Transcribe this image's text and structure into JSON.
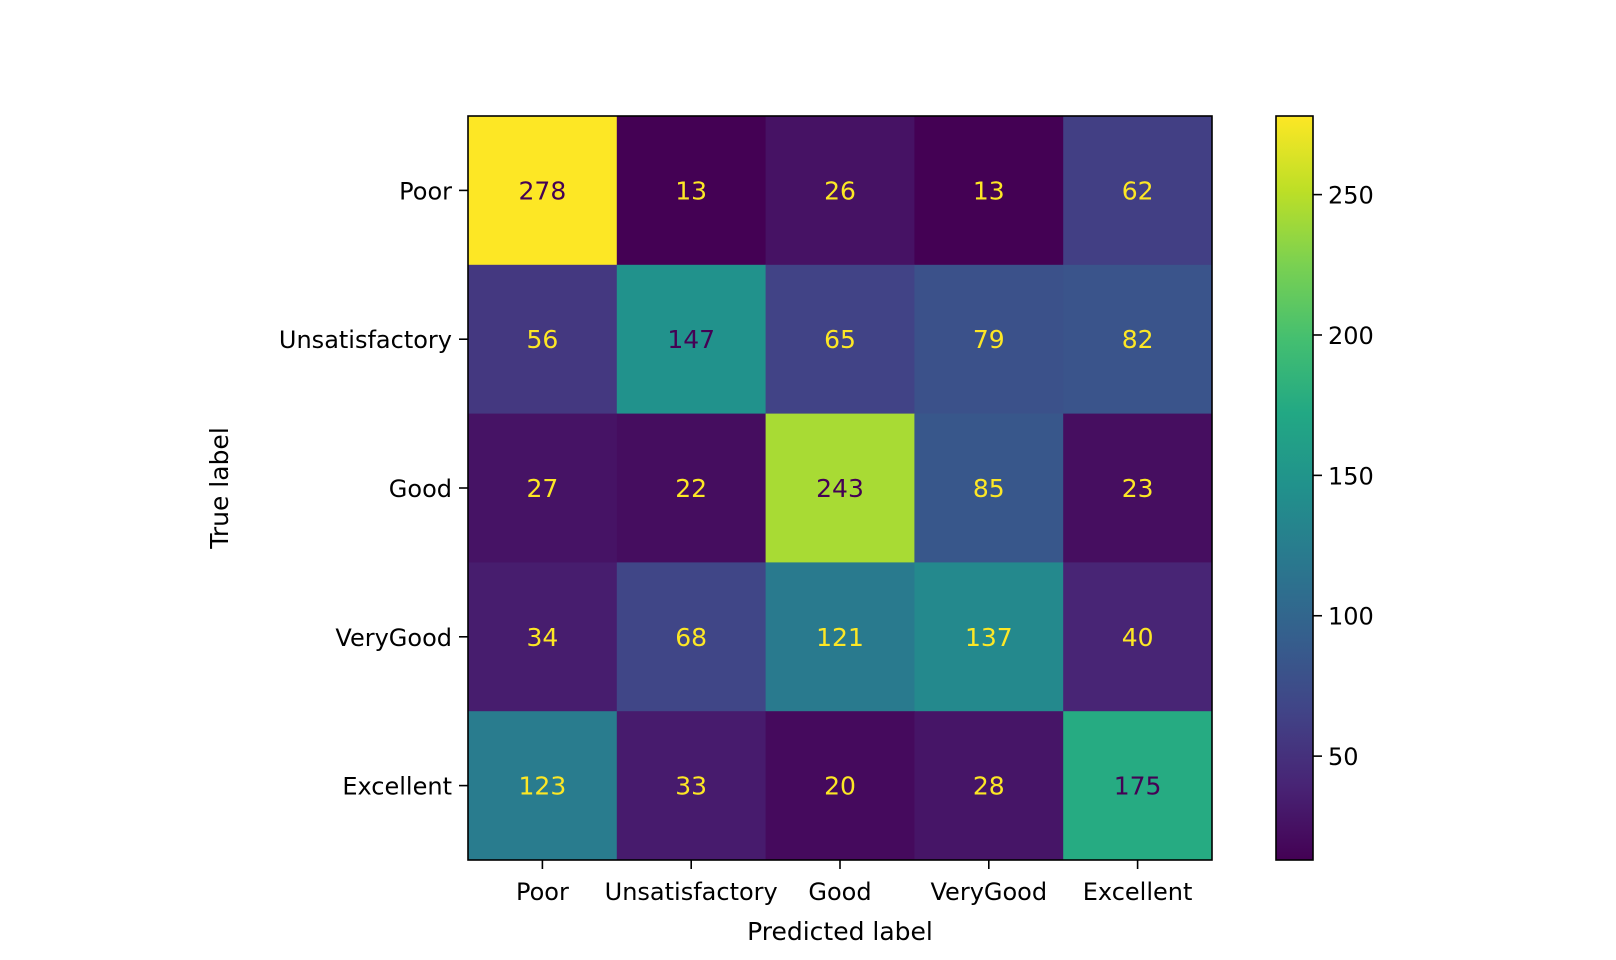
{
  "chart_data": {
    "type": "heatmap",
    "title": "",
    "xlabel": "Predicted label",
    "ylabel": "True label",
    "x_categories": [
      "Poor",
      "Unsatisfactory",
      "Good",
      "VeryGood",
      "Excellent"
    ],
    "y_categories": [
      "Poor",
      "Unsatisfactory",
      "Good",
      "VeryGood",
      "Excellent"
    ],
    "matrix": [
      [
        278,
        13,
        26,
        13,
        62
      ],
      [
        56,
        147,
        65,
        79,
        82
      ],
      [
        27,
        22,
        243,
        85,
        23
      ],
      [
        34,
        68,
        121,
        137,
        40
      ],
      [
        123,
        33,
        20,
        28,
        175
      ]
    ],
    "colormap": "viridis",
    "value_range": [
      13,
      278
    ],
    "colorbar": {
      "ticks": [
        50,
        100,
        150,
        200,
        250
      ]
    },
    "label_colors": {
      "light": "#fde725",
      "dark": "#440154"
    }
  }
}
